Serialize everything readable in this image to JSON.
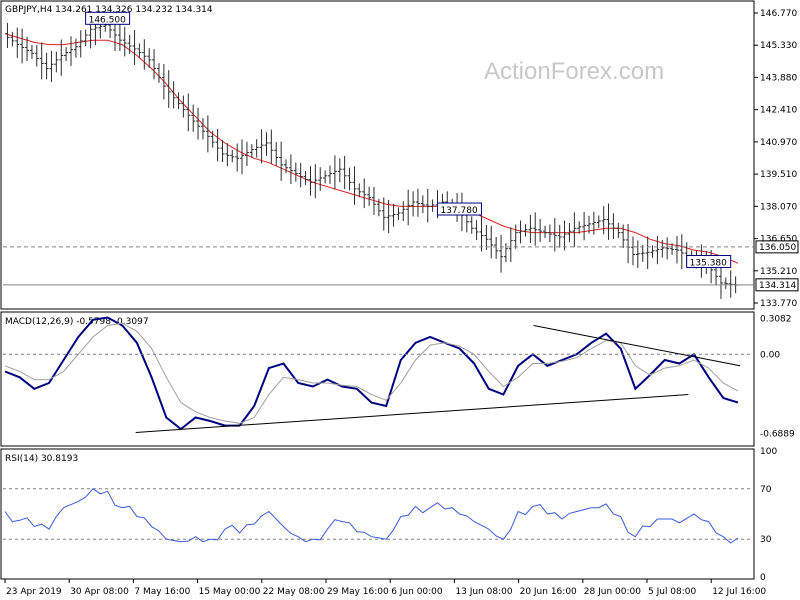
{
  "watermark": "ActionForex.com",
  "colors": {
    "price": "#2b2b2b",
    "ma": "#e02020",
    "macd": "#000080",
    "signal": "#a0a0a0",
    "rsi": "#3a5bd9",
    "border": "#000000",
    "dashed": "#808080",
    "annot_border": "#000080",
    "annot_text": "#000080"
  },
  "chart_data": [
    {
      "type": "candlestick",
      "title": "GBPJPY,H4  134.261 134.326 134.232 134.314",
      "ylim": [
        133.3,
        147.2
      ],
      "y_ticks": [
        "146.770",
        "145.330",
        "143.880",
        "142.410",
        "140.970",
        "139.510",
        "138.070",
        "136.650",
        "135.210",
        "133.770"
      ],
      "x_ticks": [
        "23 Apr 2019",
        "30 Apr 08:00",
        "7 May 16:00",
        "15 May 00:00",
        "22 May 08:00",
        "29 May 16:00",
        "6 Jun 00:00",
        "13 Jun 08:00",
        "20 Jun 16:00",
        "28 Jun 00:00",
        "5 Jul 08:00",
        "12 Jul 16:00"
      ],
      "price_close": [
        145.8,
        145.3,
        144.9,
        144.2,
        144.8,
        145.2,
        146.0,
        146.2,
        145.5,
        145.1,
        144.6,
        143.4,
        142.6,
        141.8,
        141.1,
        140.3,
        140.1,
        140.5,
        140.8,
        139.8,
        139.4,
        139.0,
        139.3,
        139.6,
        138.7,
        138.3,
        137.4,
        137.6,
        138.1,
        137.9,
        138.1,
        137.8,
        136.9,
        136.4,
        135.6,
        136.7,
        136.9,
        136.7,
        136.5,
        136.9,
        137.1,
        137.3,
        136.7,
        135.7,
        135.8,
        136.0,
        135.9,
        135.5,
        135.3,
        134.4,
        134.3
      ],
      "ma_values": [
        145.8,
        145.6,
        145.4,
        145.3,
        145.3,
        145.4,
        145.5,
        145.5,
        145.3,
        144.8,
        144.2,
        143.5,
        142.7,
        142.0,
        141.3,
        140.8,
        140.4,
        140.1,
        139.9,
        139.6,
        139.3,
        139.0,
        138.8,
        138.6,
        138.4,
        138.2,
        138.0,
        137.9,
        137.9,
        137.9,
        137.9,
        137.8,
        137.6,
        137.3,
        137.0,
        136.8,
        136.7,
        136.7,
        136.7,
        136.7,
        136.8,
        136.9,
        136.9,
        136.7,
        136.4,
        136.2,
        136.1,
        135.9,
        135.8,
        135.6,
        135.3
      ],
      "horizontal_lines": [
        136.05,
        134.314
      ],
      "annotations": [
        {
          "text": "146.500",
          "value": 146.5
        },
        {
          "text": "137.780",
          "value": 137.78
        },
        {
          "text": "135.380",
          "value": 135.38
        }
      ],
      "price_labels": [
        {
          "text": "136.050",
          "value": 136.05
        },
        {
          "text": "134.314",
          "value": 134.314
        }
      ]
    },
    {
      "type": "line",
      "title": "MACD(12,26,9) -0.5798 -0.3097",
      "ylim": [
        -0.78,
        0.35
      ],
      "y_ticks": [
        "0.3082",
        "0.00",
        "-0.6889"
      ],
      "series": [
        {
          "name": "MACD",
          "values": [
            -0.15,
            -0.2,
            -0.3,
            -0.25,
            -0.05,
            0.15,
            0.3,
            0.32,
            0.25,
            0.1,
            -0.2,
            -0.55,
            -0.65,
            -0.55,
            -0.58,
            -0.62,
            -0.62,
            -0.45,
            -0.12,
            -0.08,
            -0.25,
            -0.28,
            -0.22,
            -0.28,
            -0.3,
            -0.42,
            -0.45,
            -0.05,
            0.1,
            0.15,
            0.1,
            0.05,
            -0.08,
            -0.3,
            -0.35,
            -0.1,
            0.0,
            -0.1,
            -0.05,
            0.0,
            0.1,
            0.18,
            0.05,
            -0.3,
            -0.18,
            -0.05,
            -0.08,
            0.0,
            -0.2,
            -0.38,
            -0.42
          ]
        },
        {
          "name": "Signal",
          "values": [
            -0.1,
            -0.15,
            -0.22,
            -0.22,
            -0.15,
            0.0,
            0.15,
            0.25,
            0.27,
            0.2,
            0.05,
            -0.2,
            -0.42,
            -0.5,
            -0.55,
            -0.58,
            -0.6,
            -0.55,
            -0.35,
            -0.2,
            -0.22,
            -0.25,
            -0.25,
            -0.27,
            -0.28,
            -0.35,
            -0.4,
            -0.25,
            -0.05,
            0.08,
            0.1,
            0.07,
            0.0,
            -0.15,
            -0.28,
            -0.2,
            -0.08,
            -0.08,
            -0.06,
            -0.03,
            0.05,
            0.12,
            0.1,
            -0.1,
            -0.18,
            -0.12,
            -0.1,
            -0.05,
            -0.12,
            -0.25,
            -0.32
          ]
        }
      ],
      "trendlines": [
        {
          "from": [
            0.18,
            -0.68
          ],
          "to": [
            0.93,
            -0.35
          ]
        },
        {
          "from": [
            0.72,
            0.25
          ],
          "to": [
            1.0,
            -0.1
          ]
        }
      ]
    },
    {
      "type": "line",
      "title": "RSI(14) 30.8193",
      "ylim": [
        0,
        100
      ],
      "y_ticks": [
        "100",
        "70",
        "30",
        "0"
      ],
      "reference_lines": [
        70,
        30
      ],
      "series": [
        {
          "name": "RSI",
          "values": [
            52,
            45,
            40,
            38,
            55,
            60,
            70,
            68,
            55,
            48,
            40,
            30,
            28,
            32,
            30,
            38,
            35,
            42,
            52,
            40,
            32,
            30,
            38,
            44,
            36,
            32,
            30,
            48,
            56,
            55,
            54,
            50,
            44,
            38,
            30,
            52,
            56,
            50,
            46,
            52,
            55,
            58,
            48,
            32,
            40,
            46,
            43,
            50,
            44,
            32,
            31
          ]
        }
      ]
    }
  ]
}
